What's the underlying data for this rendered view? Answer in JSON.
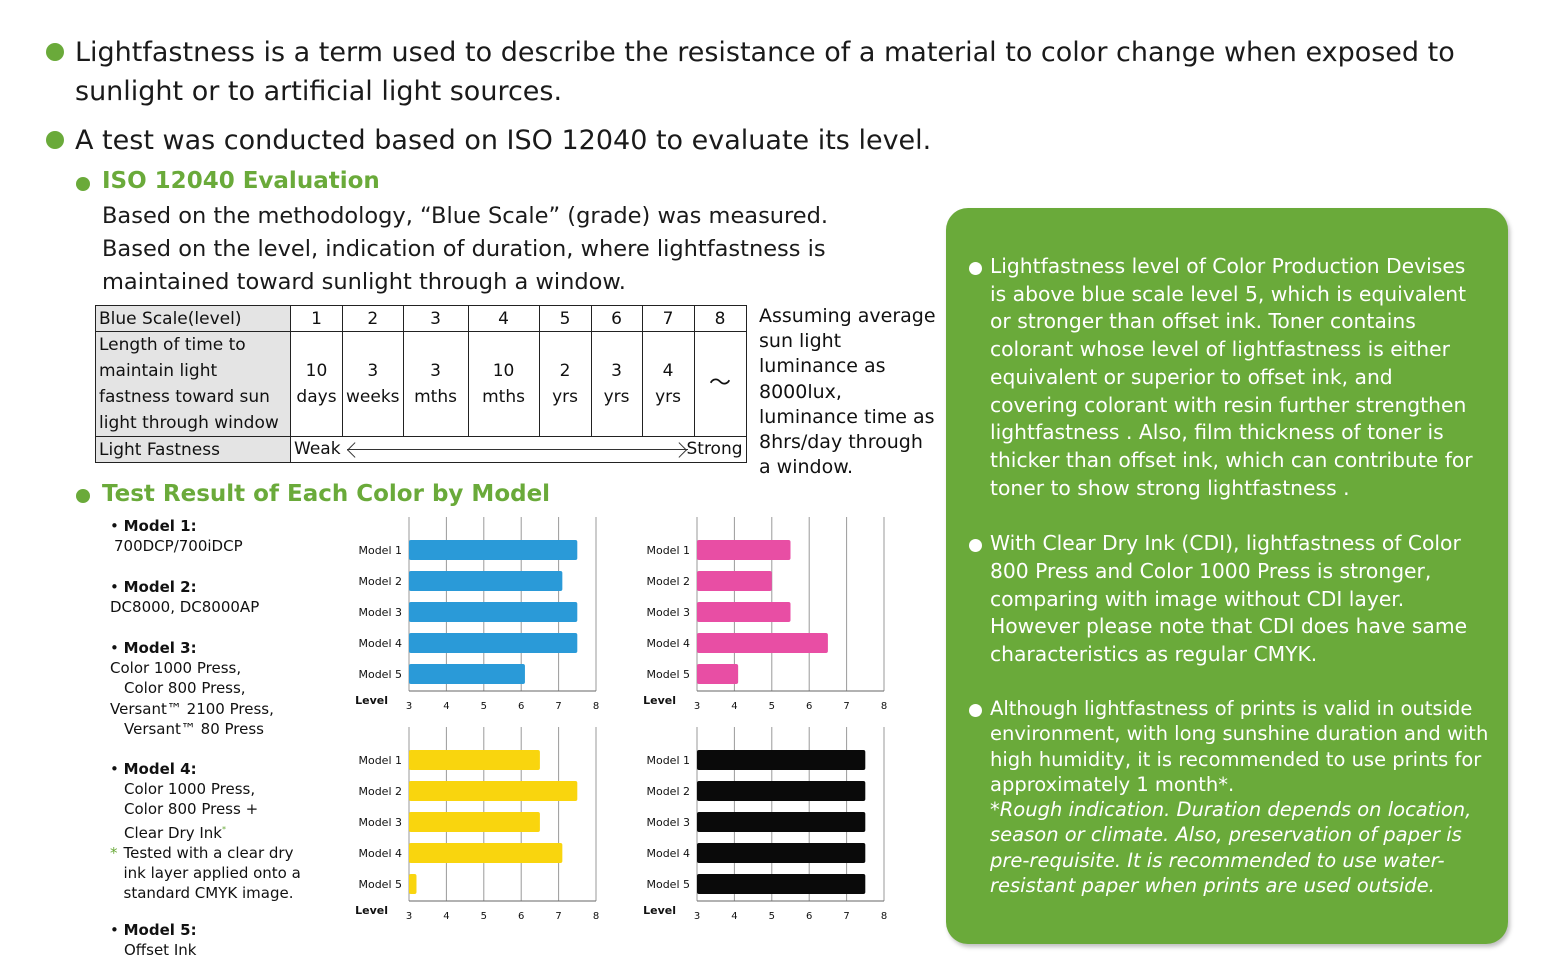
{
  "intro": {
    "bullet1": "Lightfastness is a term used to describe the resistance of a material to color change when exposed to sunlight or to artificial light sources.",
    "bullet2": "A test was conducted based on ISO 12040 to evaluate its level."
  },
  "iso_section": {
    "heading": "ISO 12040 Evaluation",
    "description": "Based on the methodology, “Blue Scale” (grade) was measured. Based on the level, indication of duration, where lightfastness is maintained toward sunlight through a window."
  },
  "blue_scale_table": {
    "row1_label": "Blue Scale(level)",
    "levels": [
      "1",
      "2",
      "3",
      "4",
      "5",
      "6",
      "7",
      "8"
    ],
    "row2_label": "Length of time to maintain light fastness toward sun light through window",
    "durations": [
      {
        "num": "10",
        "unit": "days"
      },
      {
        "num": "3",
        "unit": "weeks"
      },
      {
        "num": "3",
        "unit": "mths"
      },
      {
        "num": "10",
        "unit": "mths"
      },
      {
        "num": "2",
        "unit": "yrs"
      },
      {
        "num": "3",
        "unit": "yrs"
      },
      {
        "num": "4",
        "unit": "yrs"
      },
      {
        "num": "〜",
        "unit": ""
      }
    ],
    "row3_label": "Light Fastness",
    "weak_label": "Weak",
    "strong_label": "Strong"
  },
  "side_note": "Assuming average sun light luminance as 8000lux, luminance time as 8hrs/day through a window.",
  "test_section": {
    "heading": "Test Result of Each Color by Model"
  },
  "models": [
    {
      "title": "Model 1",
      "lines": [
        "700DCP/700iDCP"
      ]
    },
    {
      "title": "Model 2",
      "lines": [
        "DC8000, DC8000AP"
      ]
    },
    {
      "title": "Model 3",
      "lines": [
        "Color 1000 Press,",
        "Color 800 Press,",
        "Versant™ 2100 Press,",
        "Versant™ 80 Press"
      ]
    },
    {
      "title": "Model 4",
      "lines": [
        "Color 1000 Press,",
        "Color 800 Press +",
        "Clear Dry Ink"
      ],
      "note": "Tested with a clear dry ink layer applied onto a standard CMYK image."
    },
    {
      "title": "Model 5",
      "lines": [
        "Offset Ink"
      ]
    }
  ],
  "chart_data": [
    {
      "type": "bar",
      "orientation": "horizontal",
      "categories": [
        "Model 1",
        "Model 2",
        "Model 3",
        "Model 4",
        "Model 5"
      ],
      "values": [
        7.5,
        7.1,
        7.5,
        7.5,
        6.1
      ],
      "xlabel": "Level",
      "xlim": [
        3,
        8
      ],
      "ticks": [
        "3",
        "4",
        "5",
        "6",
        "7",
        "8"
      ],
      "color": "#2a9ad8",
      "grid": true
    },
    {
      "type": "bar",
      "orientation": "horizontal",
      "categories": [
        "Model 1",
        "Model 2",
        "Model 3",
        "Model 4",
        "Model 5"
      ],
      "values": [
        5.5,
        5.0,
        5.5,
        6.5,
        4.1
      ],
      "xlabel": "Level",
      "xlim": [
        3,
        8
      ],
      "ticks": [
        "3",
        "4",
        "5",
        "6",
        "7",
        "8"
      ],
      "color": "#e84ea4",
      "grid": true
    },
    {
      "type": "bar",
      "orientation": "horizontal",
      "categories": [
        "Model 1",
        "Model 2",
        "Model 3",
        "Model 4",
        "Model 5"
      ],
      "values": [
        6.5,
        7.5,
        6.5,
        7.1,
        3.2
      ],
      "xlabel": "Level",
      "xlim": [
        3,
        8
      ],
      "ticks": [
        "3",
        "4",
        "5",
        "6",
        "7",
        "8"
      ],
      "color": "#f9d50e",
      "grid": true
    },
    {
      "type": "bar",
      "orientation": "horizontal",
      "categories": [
        "Model 1",
        "Model 2",
        "Model 3",
        "Model 4",
        "Model 5"
      ],
      "values": [
        7.5,
        7.5,
        7.5,
        7.5,
        7.5
      ],
      "xlabel": "Level",
      "xlim": [
        3,
        8
      ],
      "ticks": [
        "3",
        "4",
        "5",
        "6",
        "7",
        "8"
      ],
      "color": "#0a0a0a",
      "grid": true
    }
  ],
  "green_box": {
    "bullet1": "Lightfastness level of Color Production Devises is above blue scale level 5, which is equivalent or stronger than offset ink. Toner contains colorant whose level of lightfastness is either equivalent or superior to offset ink, and covering colorant with resin further strengthen lightfastness . Also, film thickness of toner is thicker than offset ink, which can contribute for toner to show strong lightfastness .",
    "bullet2": "With Clear Dry Ink (CDI), lightfastness of Color 800 Press and Color 1000 Press is stronger, comparing with image without CDI layer. However please note that CDI does have same characteristics as regular CMYK.",
    "bullet3": "Although lightfastness of prints is valid in outside environment, with long sunshine duration and with high humidity, it is recommended to use prints for approximately 1 month*.",
    "bullet3_note": "*Rough indication. Duration depends on location, season or climate. Also, preservation of paper is pre-requisite. It is recommended to use water-resistant paper when prints are used outside."
  },
  "colors": {
    "accent_green": "#6aaa3a"
  }
}
